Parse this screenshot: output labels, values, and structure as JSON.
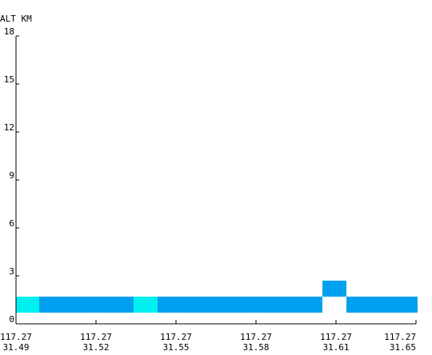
{
  "chart_data": {
    "type": "heatmap",
    "title": "",
    "ylabel": "ALT KM",
    "xlabel": "",
    "ylim": [
      0,
      18
    ],
    "yticks": [
      0,
      3,
      6,
      9,
      12,
      15,
      18
    ],
    "xticks": [
      {
        "lon": "117.27",
        "lat": "31.49"
      },
      {
        "lon": "117.27",
        "lat": "31.52"
      },
      {
        "lon": "117.27",
        "lat": "31.55"
      },
      {
        "lon": "117.27",
        "lat": "31.58"
      },
      {
        "lon": "117.27",
        "lat": "31.61"
      },
      {
        "lon": "117.27",
        "lat": "31.65"
      }
    ],
    "xlim": [
      0,
      5
    ],
    "grid": false,
    "cells": [
      {
        "x0": 0.0,
        "x1": 0.29,
        "alt0": 0.7,
        "alt1": 1.7,
        "color": "#00f0f0"
      },
      {
        "x0": 0.29,
        "x1": 1.47,
        "alt0": 0.7,
        "alt1": 1.7,
        "color": "#00a0f0"
      },
      {
        "x0": 1.47,
        "x1": 1.77,
        "alt0": 0.7,
        "alt1": 1.7,
        "color": "#00f0f0"
      },
      {
        "x0": 1.77,
        "x1": 3.83,
        "alt0": 0.7,
        "alt1": 1.7,
        "color": "#00a0f0"
      },
      {
        "x0": 3.83,
        "x1": 4.13,
        "alt0": 1.7,
        "alt1": 2.7,
        "color": "#00a0f0"
      },
      {
        "x0": 4.13,
        "x1": 5.02,
        "alt0": 0.7,
        "alt1": 1.7,
        "color": "#00a0f0"
      }
    ]
  }
}
